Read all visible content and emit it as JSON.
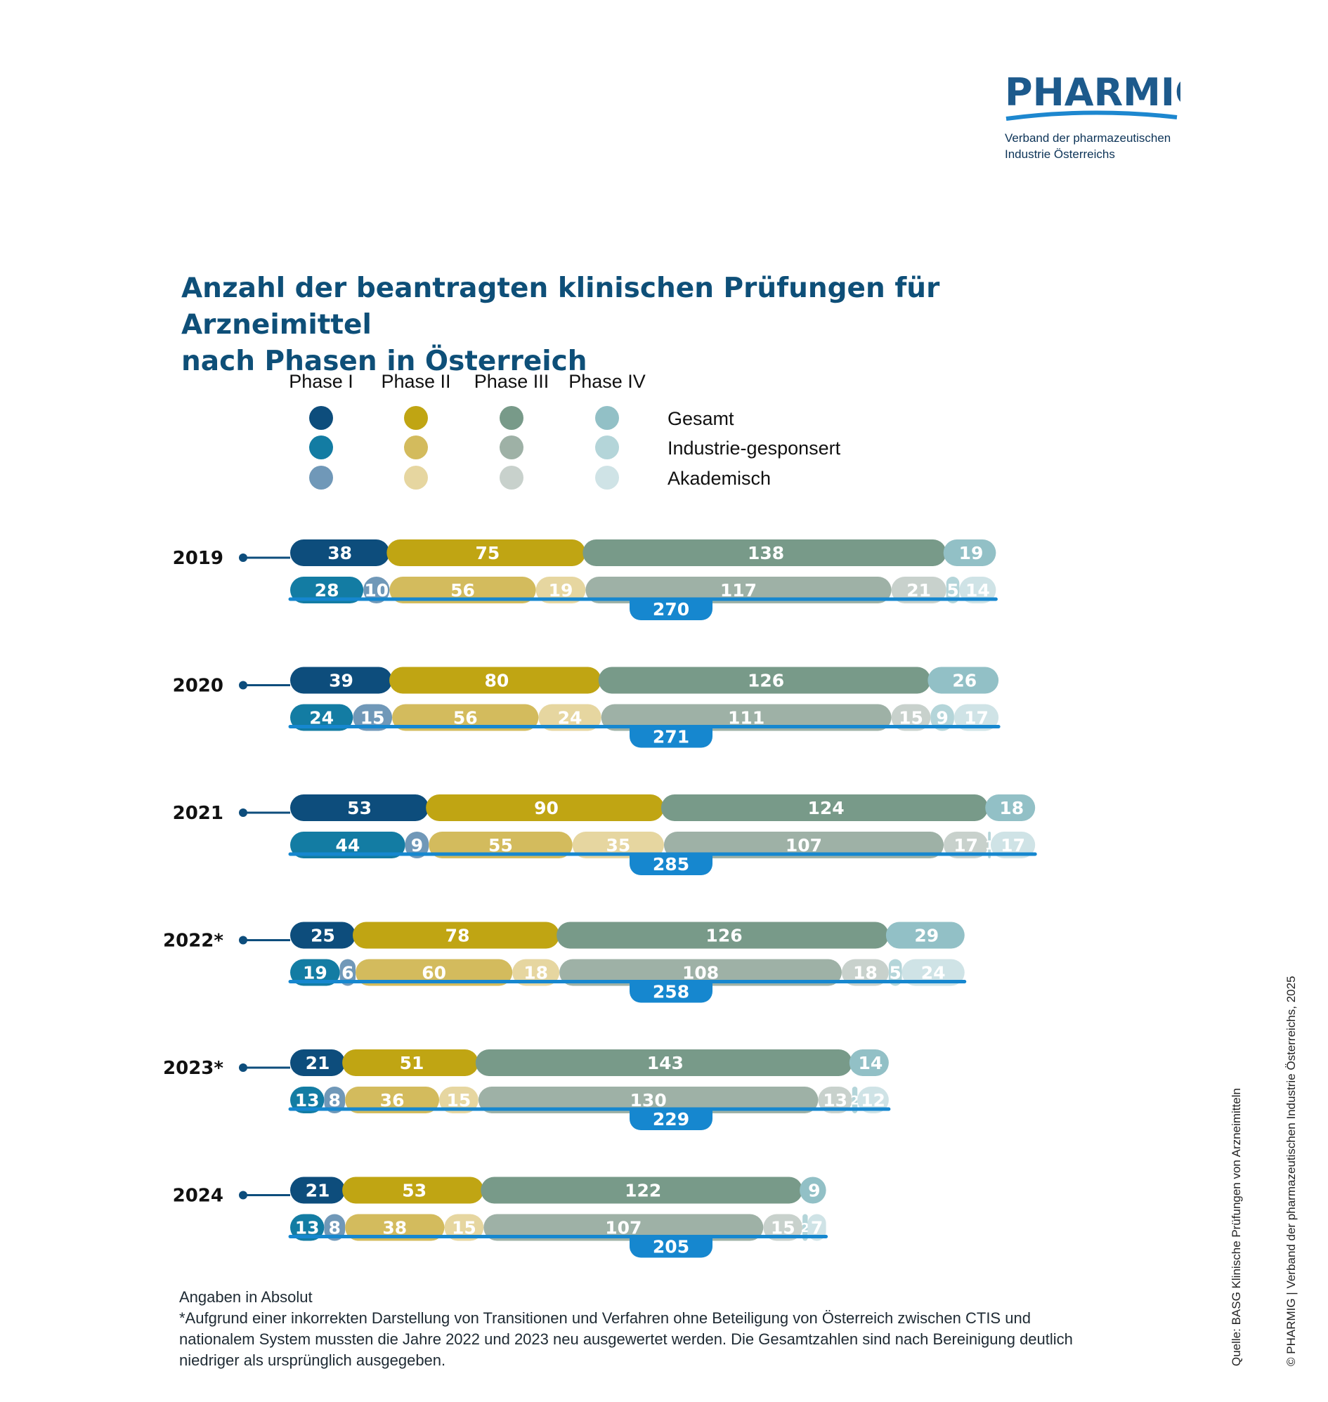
{
  "logo": {
    "name": "PHARMIG",
    "tagline_1": "Verband der pharmazeutischen",
    "tagline_2": "Industrie Österreichs"
  },
  "title": {
    "line1": "Anzahl der beantragten klinischen Prüfungen für Arzneimittel",
    "line2": "nach Phasen in Österreich"
  },
  "chart_data": {
    "type": "bar",
    "subtype": "stacked-horizontal",
    "title": "Anzahl der beantragten klinischen Prüfungen für Arzneimittel nach Phasen in Österreich",
    "unit_note": "Angaben in Absolut",
    "phases": [
      "Phase I",
      "Phase II",
      "Phase III",
      "Phase IV"
    ],
    "row_labels": [
      "Gesamt",
      "Industrie-gesponsert",
      "Akademisch"
    ],
    "colors": {
      "gesamt": [
        "#0d4d7c",
        "#c0a513",
        "#789a89",
        "#92c0c6"
      ],
      "industrie": [
        "#137ca3",
        "#d3bb5d",
        "#9eb1a6",
        "#b4d5d9"
      ],
      "akademisch": [
        "#7098b8",
        "#e6d6a0",
        "#c8d1cc",
        "#cfe3e6"
      ],
      "total_bar": "#1687cf",
      "year_connector": "#0d4d7c"
    },
    "years": [
      {
        "label": "2019",
        "gesamt": [
          38,
          75,
          138,
          19
        ],
        "industrie": [
          28,
          56,
          117,
          5
        ],
        "akademisch": [
          10,
          19,
          21,
          14
        ],
        "total": 270
      },
      {
        "label": "2020",
        "gesamt": [
          39,
          80,
          126,
          26
        ],
        "industrie": [
          24,
          56,
          111,
          9
        ],
        "akademisch": [
          15,
          24,
          15,
          17
        ],
        "total": 271
      },
      {
        "label": "2021",
        "gesamt": [
          53,
          90,
          124,
          18
        ],
        "industrie": [
          44,
          55,
          107,
          1
        ],
        "akademisch": [
          9,
          35,
          17,
          17
        ],
        "total": 285
      },
      {
        "label": "2022*",
        "gesamt": [
          25,
          78,
          126,
          29
        ],
        "industrie": [
          19,
          60,
          108,
          5
        ],
        "akademisch": [
          6,
          18,
          18,
          24
        ],
        "total": 258
      },
      {
        "label": "2023*",
        "gesamt": [
          21,
          51,
          143,
          14
        ],
        "industrie": [
          13,
          36,
          130,
          2
        ],
        "akademisch": [
          8,
          15,
          13,
          12
        ],
        "total": 229
      },
      {
        "label": "2024",
        "gesamt": [
          21,
          53,
          122,
          9
        ],
        "industrie": [
          13,
          38,
          107,
          2
        ],
        "akademisch": [
          8,
          15,
          15,
          7
        ],
        "total": 205
      }
    ]
  },
  "footnote": {
    "absolute": "Angaben in Absolut",
    "line1": "*Aufgrund einer inkorrekten Darstellung von Transitionen und Verfahren ohne Beteiligung von Österreich zwischen CTIS und",
    "line2": "nationalem System mussten die Jahre 2022 und 2023 neu ausgewertet werden. Die Gesamtzahlen sind nach Bereinigung deutlich",
    "line3": "niedriger als ursprünglich ausgegeben."
  },
  "side": {
    "source": "Quelle: BASG Klinische Prüfungen von Arzneimitteln",
    "copyright": "© PHARMIG | Verband der pharmazeutischen Industrie Österreichs, 2025"
  }
}
